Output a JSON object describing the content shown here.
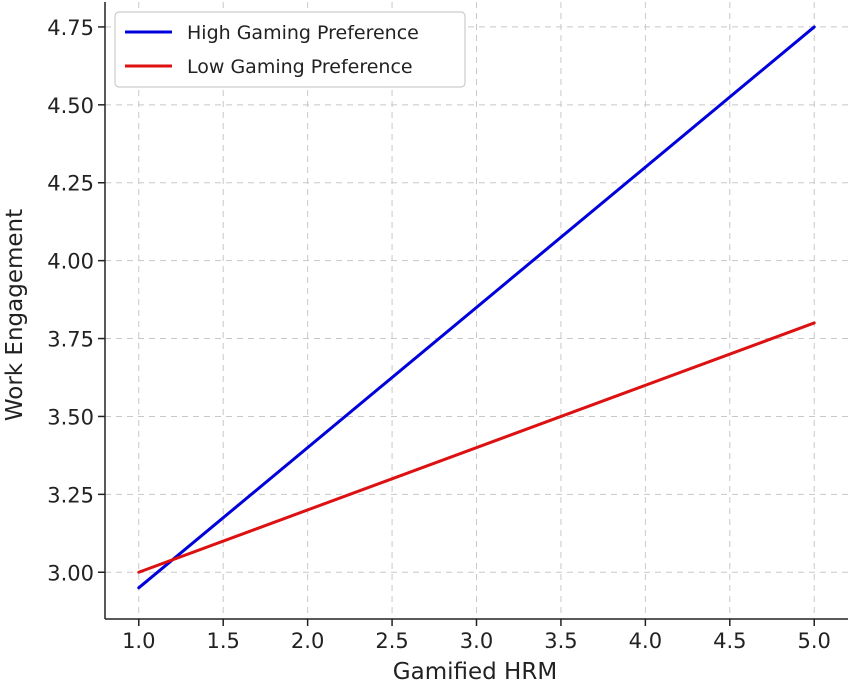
{
  "chart_data": {
    "type": "line",
    "title": "",
    "xlabel": "Gamified HRM",
    "ylabel": "Work Engagement",
    "xlim": [
      0.8,
      5.2
    ],
    "ylim": [
      2.85,
      4.83
    ],
    "x_ticks": [
      "1.0",
      "1.5",
      "2.0",
      "2.5",
      "3.0",
      "3.5",
      "4.0",
      "4.5",
      "5.0"
    ],
    "y_ticks": [
      "3.00",
      "3.25",
      "3.50",
      "3.75",
      "4.00",
      "4.25",
      "4.50",
      "4.75"
    ],
    "grid": true,
    "legend_position": "top-left",
    "series": [
      {
        "name": "High Gaming Preference",
        "color": "#0000dd",
        "x": [
          1.0,
          5.0
        ],
        "y": [
          2.95,
          4.75
        ]
      },
      {
        "name": "Low Gaming Preference",
        "color": "#dd1111",
        "x": [
          1.0,
          5.0
        ],
        "y": [
          3.0,
          3.8
        ]
      }
    ]
  }
}
